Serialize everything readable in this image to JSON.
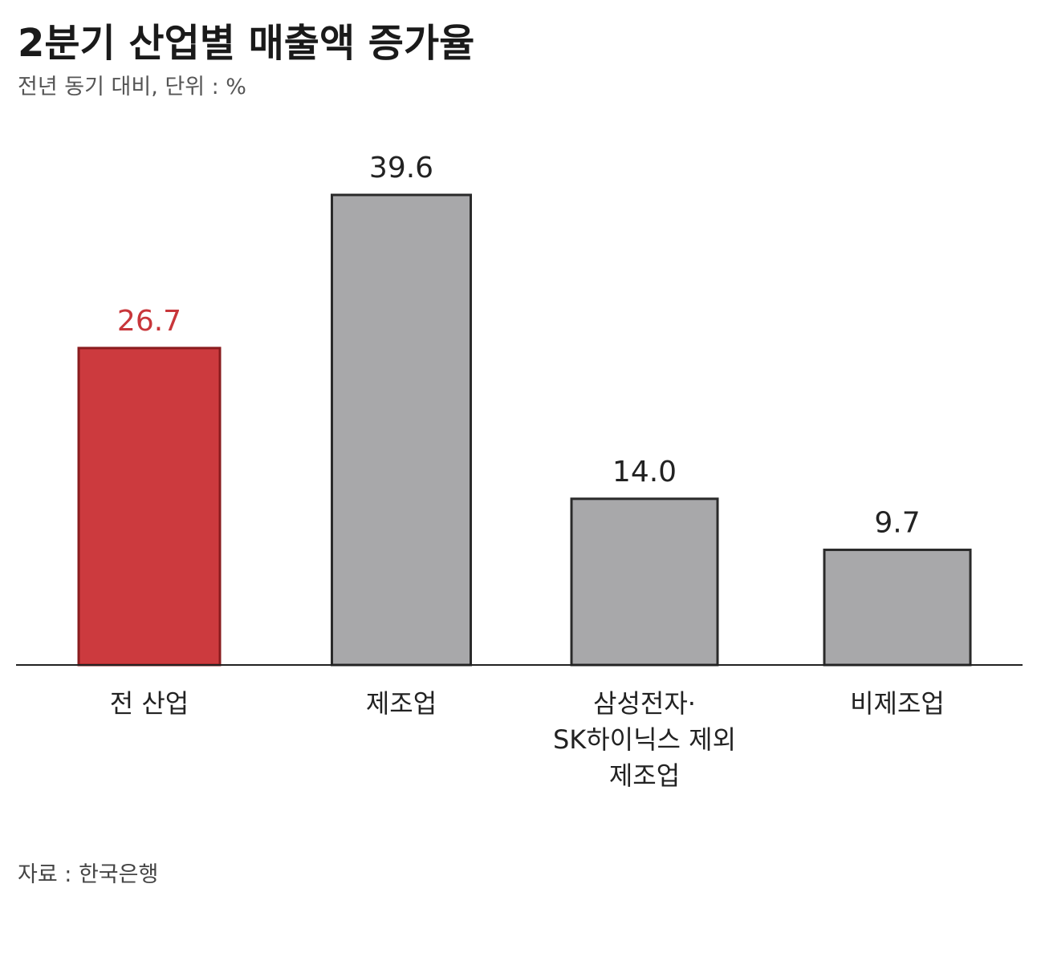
{
  "header": {
    "title": "2분기 산업별 매출액 증가율",
    "subtitle": "전년 동기 대비, 단위 : %"
  },
  "footer": {
    "source": "자료 : 한국은행"
  },
  "colors": {
    "highlight_fill": "#cc3a3e",
    "highlight_stroke": "#8a1c1f",
    "highlight_label": "#c8363a",
    "bar_fill": "#a8a8aa",
    "bar_stroke": "#2a2a2a",
    "value_label": "#222222",
    "axis": "#222222"
  },
  "chart_data": {
    "type": "bar",
    "title": "2분기 산업별 매출액 증가율",
    "subtitle": "전년 동기 대비, 단위 : %",
    "categories": [
      [
        "전 산업"
      ],
      [
        "제조업"
      ],
      [
        "삼성전자·",
        "SK하이닉스 제외",
        "제조업"
      ],
      [
        "비제조업"
      ]
    ],
    "values": [
      26.7,
      39.6,
      14.0,
      9.7
    ],
    "value_labels": [
      "26.7",
      "39.6",
      "14.0",
      "9.7"
    ],
    "highlight_index": 0,
    "unit": "%",
    "ylim": [
      0,
      40
    ],
    "grid": false,
    "legend": "none"
  }
}
